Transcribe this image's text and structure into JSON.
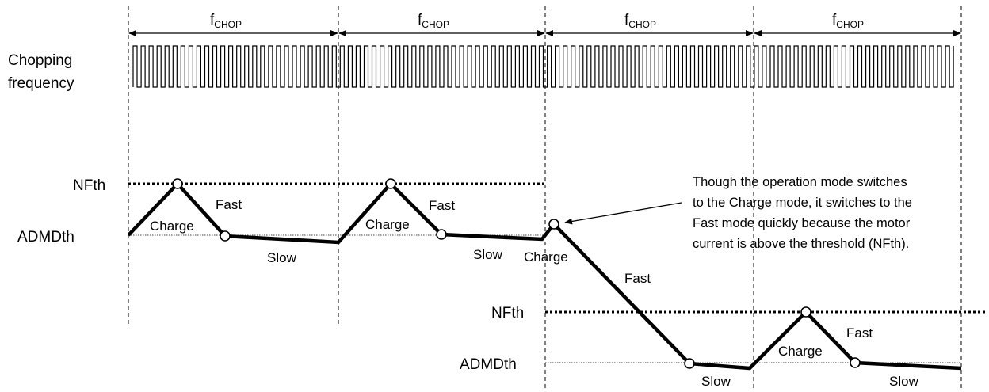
{
  "labels": {
    "period_symbol": "f",
    "period_subscript": "CHOP",
    "chopping_line1": "Chopping",
    "chopping_line2": "frequency",
    "nfth": "NFth",
    "admdth": "ADMDth",
    "charge": "Charge",
    "fast": "Fast",
    "slow": "Slow"
  },
  "annotation": {
    "line1": "Though the operation mode switches",
    "line2": "to the Charge mode, it switches to the",
    "line3": "Fast mode quickly because the motor",
    "line4": "current is above the threshold (NFth)."
  },
  "colors": {
    "line": "#000000",
    "background": "#ffffff"
  }
}
